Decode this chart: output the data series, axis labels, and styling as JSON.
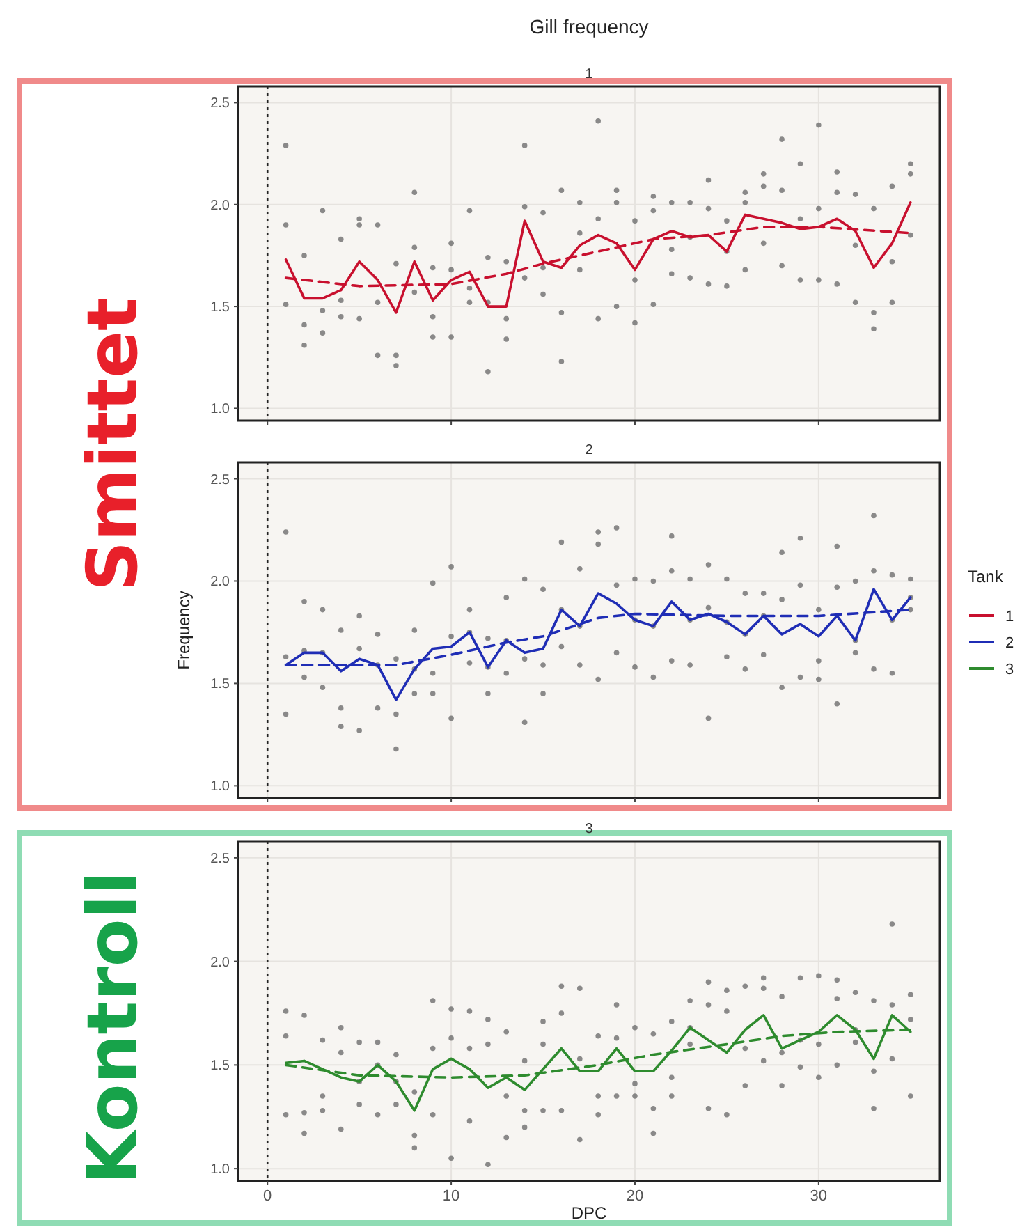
{
  "chart_data": [
    {
      "type": "line",
      "title": "Gill frequency",
      "subtitle": "1",
      "annotations": [
        "Smittet"
      ],
      "xlim": [
        -1.6,
        36.6
      ],
      "ylim": [
        0.94,
        2.58
      ],
      "xticks": [
        0,
        10,
        20,
        30
      ],
      "yticks": [
        {
          "value": 1,
          "label": "1.0"
        },
        {
          "value": 1.5,
          "label": "1.5"
        },
        {
          "value": 2,
          "label": "2.0"
        },
        {
          "value": 2.5,
          "label": "2.5"
        }
      ],
      "tick_labels": "y",
      "grid": true,
      "legend": "right",
      "legend_title": "Tank",
      "ref_lines": [
        {
          "axis": "x",
          "value": 0,
          "color": "#222222",
          "line_style": "dotted"
        }
      ],
      "series": [
        {
          "type": "scatter",
          "marker": "circle",
          "color": "#6e6e6e",
          "x": [
            1,
            1,
            1,
            2,
            2,
            2,
            3,
            3,
            3,
            4,
            4,
            4,
            5,
            5,
            5,
            6,
            6,
            6,
            7,
            7,
            7,
            8,
            8,
            8,
            9,
            9,
            9,
            10,
            10,
            10,
            11,
            11,
            11,
            12,
            12,
            12,
            13,
            13,
            13,
            14,
            14,
            14,
            15,
            15,
            15,
            16,
            16,
            16,
            17,
            17,
            17,
            18,
            18,
            18,
            19,
            19,
            19,
            20,
            20,
            20,
            21,
            21,
            21,
            22,
            22,
            22,
            23,
            23,
            23,
            24,
            24,
            24,
            25,
            25,
            25,
            26,
            26,
            26,
            27,
            27,
            27,
            28,
            28,
            28,
            29,
            29,
            29,
            30,
            30,
            30,
            31,
            31,
            31,
            32,
            32,
            32,
            33,
            33,
            33,
            34,
            34,
            34,
            35,
            35,
            35
          ],
          "values": [
            2.29,
            1.9,
            1.51,
            1.75,
            1.41,
            1.31,
            1.97,
            1.48,
            1.37,
            1.83,
            1.53,
            1.45,
            1.93,
            1.9,
            1.44,
            1.9,
            1.52,
            1.26,
            1.71,
            1.26,
            1.21,
            2.06,
            1.79,
            1.57,
            1.69,
            1.45,
            1.35,
            1.81,
            1.68,
            1.35,
            1.97,
            1.59,
            1.52,
            1.74,
            1.52,
            1.18,
            1.72,
            1.44,
            1.34,
            2.29,
            1.99,
            1.64,
            1.96,
            1.69,
            1.56,
            2.07,
            1.47,
            1.23,
            2.01,
            1.86,
            1.68,
            2.41,
            1.93,
            1.44,
            2.07,
            2.01,
            1.5,
            1.92,
            1.63,
            1.42,
            2.04,
            1.97,
            1.51,
            2.01,
            1.78,
            1.66,
            2.01,
            1.84,
            1.64,
            2.12,
            1.98,
            1.61,
            1.92,
            1.77,
            1.6,
            2.06,
            2.01,
            1.68,
            2.15,
            2.09,
            1.81,
            2.32,
            2.07,
            1.7,
            2.2,
            1.93,
            1.63,
            2.39,
            1.98,
            1.63,
            2.16,
            2.06,
            1.61,
            2.05,
            1.8,
            1.52,
            1.98,
            1.47,
            1.39,
            2.09,
            1.72,
            1.52,
            2.2,
            2.15,
            1.85
          ]
        },
        {
          "name": "1",
          "color": "#c8102e",
          "line_style": "solid",
          "x": [
            1,
            2,
            3,
            4,
            5,
            6,
            7,
            8,
            9,
            10,
            11,
            12,
            13,
            14,
            15,
            16,
            17,
            18,
            19,
            20,
            21,
            22,
            23,
            24,
            25,
            26,
            27,
            28,
            29,
            30,
            31,
            32,
            33,
            34,
            35
          ],
          "values": [
            1.73,
            1.54,
            1.54,
            1.58,
            1.72,
            1.63,
            1.47,
            1.72,
            1.53,
            1.63,
            1.67,
            1.5,
            1.5,
            1.92,
            1.72,
            1.69,
            1.8,
            1.85,
            1.81,
            1.68,
            1.83,
            1.87,
            1.84,
            1.85,
            1.77,
            1.95,
            1.93,
            1.91,
            1.88,
            1.89,
            1.93,
            1.87,
            1.69,
            1.81,
            2.01
          ]
        },
        {
          "color": "#c8102e",
          "line_style": "dashed",
          "x": [
            1,
            5,
            10,
            13,
            15,
            18,
            21,
            24,
            27,
            30,
            35
          ],
          "values": [
            1.64,
            1.6,
            1.61,
            1.66,
            1.71,
            1.77,
            1.83,
            1.85,
            1.89,
            1.89,
            1.86
          ]
        }
      ]
    },
    {
      "type": "line",
      "subtitle": "2",
      "ylabel": "Frequency",
      "xlim": [
        -1.6,
        36.6
      ],
      "ylim": [
        0.94,
        2.58
      ],
      "xticks": [
        0,
        10,
        20,
        30
      ],
      "yticks": [
        {
          "value": 1,
          "label": "1.0"
        },
        {
          "value": 1.5,
          "label": "1.5"
        },
        {
          "value": 2,
          "label": "2.0"
        },
        {
          "value": 2.5,
          "label": "2.5"
        }
      ],
      "tick_labels": "y",
      "grid": true,
      "legend": "right",
      "ref_lines": [
        {
          "axis": "x",
          "value": 0,
          "color": "#222222",
          "line_style": "dotted"
        }
      ],
      "series": [
        {
          "type": "scatter",
          "marker": "circle",
          "color": "#6e6e6e",
          "x": [
            1,
            1,
            1,
            2,
            2,
            2,
            3,
            3,
            3,
            4,
            4,
            4,
            5,
            5,
            5,
            6,
            6,
            6,
            7,
            7,
            7,
            8,
            8,
            8,
            9,
            9,
            9,
            10,
            10,
            10,
            11,
            11,
            11,
            12,
            12,
            12,
            13,
            13,
            13,
            14,
            14,
            14,
            15,
            15,
            15,
            16,
            16,
            16,
            17,
            17,
            17,
            18,
            18,
            18,
            19,
            19,
            19,
            20,
            20,
            20,
            21,
            21,
            21,
            22,
            22,
            22,
            23,
            23,
            23,
            24,
            24,
            24,
            25,
            25,
            25,
            26,
            26,
            26,
            27,
            27,
            27,
            28,
            28,
            28,
            29,
            29,
            29,
            30,
            30,
            30,
            31,
            31,
            31,
            32,
            32,
            32,
            33,
            33,
            33,
            34,
            34,
            34,
            35,
            35,
            35
          ],
          "values": [
            2.24,
            1.63,
            1.35,
            1.9,
            1.66,
            1.53,
            1.86,
            1.65,
            1.48,
            1.76,
            1.38,
            1.29,
            1.83,
            1.67,
            1.27,
            1.74,
            1.59,
            1.38,
            1.62,
            1.35,
            1.18,
            1.76,
            1.57,
            1.45,
            1.99,
            1.55,
            1.45,
            2.07,
            1.73,
            1.33,
            1.86,
            1.75,
            1.6,
            1.72,
            1.58,
            1.45,
            1.92,
            1.71,
            1.55,
            2.01,
            1.62,
            1.31,
            1.96,
            1.59,
            1.45,
            2.19,
            1.86,
            1.68,
            2.06,
            1.78,
            1.59,
            2.24,
            2.18,
            1.52,
            2.26,
            1.98,
            1.65,
            2.01,
            1.81,
            1.58,
            2.0,
            1.78,
            1.53,
            2.22,
            2.05,
            1.61,
            2.01,
            1.81,
            1.59,
            2.08,
            1.87,
            1.33,
            2.01,
            1.8,
            1.63,
            1.94,
            1.74,
            1.57,
            1.94,
            1.83,
            1.64,
            2.14,
            1.91,
            1.48,
            2.21,
            1.98,
            1.53,
            1.86,
            1.61,
            1.52,
            2.17,
            1.97,
            1.4,
            2.0,
            1.71,
            1.65,
            2.32,
            2.05,
            1.57,
            2.03,
            1.81,
            1.55,
            2.01,
            1.92,
            1.86
          ]
        },
        {
          "name": "2",
          "color": "#1f2db5",
          "line_style": "solid",
          "x": [
            1,
            2,
            3,
            4,
            5,
            6,
            7,
            8,
            9,
            10,
            11,
            12,
            13,
            14,
            15,
            16,
            17,
            18,
            19,
            20,
            21,
            22,
            23,
            24,
            25,
            26,
            27,
            28,
            29,
            30,
            31,
            32,
            33,
            34,
            35
          ],
          "values": [
            1.59,
            1.65,
            1.65,
            1.56,
            1.62,
            1.59,
            1.42,
            1.57,
            1.67,
            1.68,
            1.75,
            1.58,
            1.71,
            1.65,
            1.67,
            1.86,
            1.78,
            1.94,
            1.89,
            1.81,
            1.78,
            1.9,
            1.81,
            1.84,
            1.8,
            1.74,
            1.83,
            1.74,
            1.79,
            1.73,
            1.83,
            1.71,
            1.96,
            1.81,
            1.92
          ]
        },
        {
          "color": "#1f2db5",
          "line_style": "dashed",
          "x": [
            1,
            5,
            7,
            10,
            13,
            15,
            18,
            20,
            25,
            30,
            35
          ],
          "values": [
            1.59,
            1.59,
            1.59,
            1.64,
            1.7,
            1.73,
            1.82,
            1.84,
            1.83,
            1.83,
            1.86
          ]
        }
      ]
    },
    {
      "type": "line",
      "subtitle": "3",
      "xlabel": "DPC",
      "annotations": [
        "Kontroll"
      ],
      "xlim": [
        -1.6,
        36.6
      ],
      "ylim": [
        0.94,
        2.58
      ],
      "xticks": [
        0,
        10,
        20,
        30
      ],
      "yticks": [
        {
          "value": 1,
          "label": "1.0"
        },
        {
          "value": 1.5,
          "label": "1.5"
        },
        {
          "value": 2,
          "label": "2.0"
        },
        {
          "value": 2.5,
          "label": "2.5"
        }
      ],
      "grid": true,
      "legend": "right",
      "ref_lines": [
        {
          "axis": "x",
          "value": 0,
          "color": "#222222",
          "line_style": "dotted"
        }
      ],
      "series": [
        {
          "type": "scatter",
          "marker": "circle",
          "color": "#6e6e6e",
          "x": [
            1,
            1,
            1,
            2,
            2,
            2,
            3,
            3,
            3,
            4,
            4,
            4,
            5,
            5,
            5,
            6,
            6,
            6,
            7,
            7,
            7,
            8,
            8,
            8,
            9,
            9,
            9,
            10,
            10,
            10,
            11,
            11,
            11,
            12,
            12,
            12,
            13,
            13,
            13,
            14,
            14,
            14,
            15,
            15,
            15,
            16,
            16,
            16,
            17,
            17,
            17,
            18,
            18,
            18,
            19,
            19,
            19,
            20,
            20,
            20,
            21,
            21,
            21,
            22,
            22,
            22,
            23,
            23,
            23,
            24,
            24,
            24,
            25,
            25,
            25,
            26,
            26,
            26,
            27,
            27,
            27,
            28,
            28,
            28,
            29,
            29,
            29,
            30,
            30,
            30,
            31,
            31,
            31,
            32,
            32,
            32,
            33,
            33,
            33,
            34,
            34,
            34,
            35,
            35,
            35
          ],
          "values": [
            1.76,
            1.64,
            1.26,
            1.74,
            1.27,
            1.17,
            1.62,
            1.35,
            1.28,
            1.68,
            1.56,
            1.19,
            1.61,
            1.42,
            1.31,
            1.61,
            1.5,
            1.26,
            1.55,
            1.42,
            1.31,
            1.37,
            1.16,
            1.1,
            1.81,
            1.58,
            1.26,
            1.77,
            1.63,
            1.05,
            1.76,
            1.58,
            1.23,
            1.72,
            1.6,
            1.02,
            1.66,
            1.35,
            1.15,
            1.52,
            1.28,
            1.2,
            1.71,
            1.6,
            1.28,
            1.88,
            1.75,
            1.28,
            1.87,
            1.53,
            1.14,
            1.64,
            1.35,
            1.26,
            1.79,
            1.63,
            1.35,
            1.68,
            1.41,
            1.35,
            1.65,
            1.29,
            1.17,
            1.71,
            1.44,
            1.35,
            1.81,
            1.68,
            1.6,
            1.9,
            1.79,
            1.29,
            1.86,
            1.76,
            1.26,
            1.88,
            1.58,
            1.4,
            1.92,
            1.87,
            1.52,
            1.83,
            1.56,
            1.4,
            1.92,
            1.62,
            1.49,
            1.93,
            1.6,
            1.44,
            1.91,
            1.82,
            1.5,
            1.85,
            1.67,
            1.61,
            1.81,
            1.47,
            1.29,
            2.18,
            1.79,
            1.53,
            1.84,
            1.72,
            1.35
          ]
        },
        {
          "name": "3",
          "color": "#2e8b2e",
          "line_style": "solid",
          "x": [
            1,
            2,
            3,
            4,
            5,
            6,
            7,
            8,
            9,
            10,
            11,
            12,
            13,
            14,
            15,
            16,
            17,
            18,
            19,
            20,
            21,
            22,
            23,
            24,
            25,
            26,
            27,
            28,
            29,
            30,
            31,
            32,
            33,
            34,
            35
          ],
          "values": [
            1.51,
            1.52,
            1.48,
            1.44,
            1.42,
            1.5,
            1.42,
            1.28,
            1.48,
            1.53,
            1.48,
            1.39,
            1.44,
            1.38,
            1.48,
            1.58,
            1.47,
            1.47,
            1.58,
            1.47,
            1.47,
            1.57,
            1.68,
            1.62,
            1.56,
            1.67,
            1.74,
            1.58,
            1.62,
            1.66,
            1.74,
            1.67,
            1.53,
            1.74,
            1.66
          ]
        },
        {
          "color": "#2e8b2e",
          "line_style": "dashed",
          "x": [
            1,
            5,
            10,
            14,
            18,
            21,
            25,
            28,
            31,
            35
          ],
          "values": [
            1.5,
            1.45,
            1.44,
            1.45,
            1.5,
            1.55,
            1.6,
            1.64,
            1.66,
            1.67
          ]
        }
      ]
    }
  ]
}
